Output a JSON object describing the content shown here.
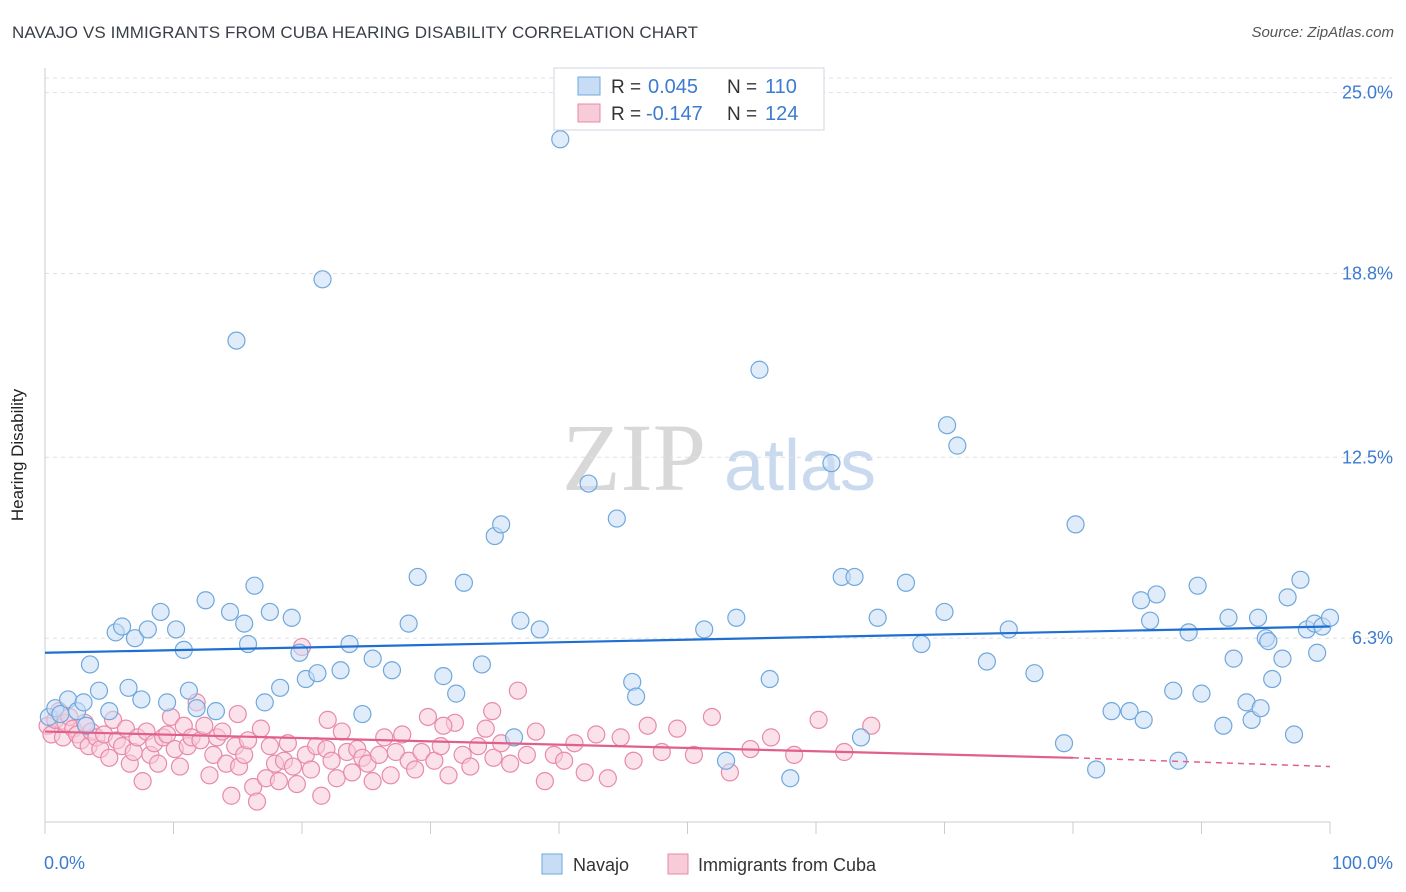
{
  "header": {
    "title": "NAVAJO VS IMMIGRANTS FROM CUBA HEARING DISABILITY CORRELATION CHART",
    "source": "Source: ZipAtlas.com"
  },
  "watermark": {
    "zip": "ZIP",
    "atlas": "atlas"
  },
  "colors": {
    "navajo": "#6fa8dc",
    "navajo_fill": "#c9dcf5",
    "navajo_line": "#1f6fd1",
    "cuba": "#e88aa8",
    "cuba_fill": "#f8cbd9",
    "cuba_line": "#e0608a",
    "tick_text": "#3c7bd0"
  },
  "chart_data": {
    "type": "scatter",
    "title": "NAVAJO VS IMMIGRANTS FROM CUBA HEARING DISABILITY CORRELATION CHART",
    "xlabel": "",
    "ylabel": "Hearing Disability",
    "xlim": [
      0,
      100
    ],
    "ylim": [
      0,
      25.5
    ],
    "x_tick_labels": [
      "0.0%",
      "100.0%"
    ],
    "y_ticks": [
      6.3,
      12.5,
      18.8,
      25.0
    ],
    "y_tick_labels": [
      "6.3%",
      "12.5%",
      "18.8%",
      "25.0%"
    ],
    "grid": true,
    "legend_position": "top-center",
    "legend": [
      {
        "r_label": "R = ",
        "r_value": "0.045",
        "n_label": "N = ",
        "n_value": "110"
      },
      {
        "r_label": "R = ",
        "r_value": "-0.147",
        "n_label": "N = ",
        "n_value": "124"
      }
    ],
    "series": [
      {
        "name": "Navajo",
        "trend": {
          "x": [
            0,
            100
          ],
          "y": [
            5.8,
            6.7
          ]
        },
        "points": [
          [
            0.3,
            3.6
          ],
          [
            0.8,
            3.9
          ],
          [
            1.2,
            3.7
          ],
          [
            1.8,
            4.2
          ],
          [
            2.5,
            3.8
          ],
          [
            3.0,
            4.1
          ],
          [
            3.2,
            3.3
          ],
          [
            3.5,
            5.4
          ],
          [
            4.2,
            4.5
          ],
          [
            5.0,
            3.8
          ],
          [
            5.5,
            6.5
          ],
          [
            6.0,
            6.7
          ],
          [
            6.5,
            4.6
          ],
          [
            7.0,
            6.3
          ],
          [
            7.5,
            4.2
          ],
          [
            8.0,
            6.6
          ],
          [
            9.0,
            7.2
          ],
          [
            9.5,
            4.1
          ],
          [
            10.2,
            6.6
          ],
          [
            10.8,
            5.9
          ],
          [
            11.2,
            4.5
          ],
          [
            11.8,
            3.9
          ],
          [
            12.5,
            7.6
          ],
          [
            13.3,
            3.8
          ],
          [
            14.4,
            7.2
          ],
          [
            14.9,
            16.5
          ],
          [
            15.5,
            6.8
          ],
          [
            15.8,
            6.1
          ],
          [
            16.3,
            8.1
          ],
          [
            17.1,
            4.1
          ],
          [
            17.5,
            7.2
          ],
          [
            18.3,
            4.6
          ],
          [
            19.2,
            7.0
          ],
          [
            19.8,
            5.8
          ],
          [
            20.3,
            4.9
          ],
          [
            21.2,
            5.1
          ],
          [
            21.6,
            18.6
          ],
          [
            23.0,
            5.2
          ],
          [
            23.7,
            6.1
          ],
          [
            24.7,
            3.7
          ],
          [
            25.5,
            5.6
          ],
          [
            27.0,
            5.2
          ],
          [
            28.3,
            6.8
          ],
          [
            29.0,
            8.4
          ],
          [
            31.0,
            5.0
          ],
          [
            32.0,
            4.4
          ],
          [
            32.6,
            8.2
          ],
          [
            34.0,
            5.4
          ],
          [
            35.0,
            9.8
          ],
          [
            35.5,
            10.2
          ],
          [
            36.5,
            2.9
          ],
          [
            37.0,
            6.9
          ],
          [
            38.5,
            6.6
          ],
          [
            40.1,
            23.4
          ],
          [
            42.3,
            11.6
          ],
          [
            44.5,
            10.4
          ],
          [
            45.7,
            4.8
          ],
          [
            46.0,
            4.3
          ],
          [
            51.3,
            6.6
          ],
          [
            53.8,
            7.0
          ],
          [
            55.6,
            15.5
          ],
          [
            56.4,
            4.9
          ],
          [
            58.0,
            1.5
          ],
          [
            61.2,
            12.3
          ],
          [
            62.0,
            8.4
          ],
          [
            63.0,
            8.4
          ],
          [
            64.8,
            7.0
          ],
          [
            67.0,
            8.2
          ],
          [
            68.2,
            6.1
          ],
          [
            70.0,
            7.2
          ],
          [
            71.0,
            12.9
          ],
          [
            73.3,
            5.5
          ],
          [
            75.0,
            6.6
          ],
          [
            77.0,
            5.1
          ],
          [
            79.3,
            2.7
          ],
          [
            80.2,
            10.2
          ],
          [
            81.8,
            1.8
          ],
          [
            83.0,
            3.8
          ],
          [
            84.4,
            3.8
          ],
          [
            85.5,
            3.5
          ],
          [
            86.0,
            6.9
          ],
          [
            87.8,
            4.5
          ],
          [
            88.2,
            2.1
          ],
          [
            89.0,
            6.5
          ],
          [
            90.0,
            4.4
          ],
          [
            91.7,
            3.3
          ],
          [
            92.1,
            7.0
          ],
          [
            93.5,
            4.1
          ],
          [
            93.9,
            3.5
          ],
          [
            94.4,
            7.0
          ],
          [
            95.0,
            6.3
          ],
          [
            95.5,
            4.9
          ],
          [
            96.3,
            5.6
          ],
          [
            96.7,
            7.7
          ],
          [
            97.2,
            3.0
          ],
          [
            98.2,
            6.6
          ],
          [
            98.8,
            6.8
          ],
          [
            99.4,
            6.7
          ],
          [
            100,
            7.0
          ],
          [
            70.2,
            13.6
          ],
          [
            85.3,
            7.6
          ],
          [
            86.5,
            7.8
          ],
          [
            89.7,
            8.1
          ],
          [
            92.5,
            5.6
          ],
          [
            94.6,
            3.9
          ],
          [
            95.2,
            6.2
          ],
          [
            97.7,
            8.3
          ],
          [
            99.0,
            5.8
          ],
          [
            63.5,
            2.9
          ],
          [
            53.0,
            2.1
          ]
        ]
      },
      {
        "name": "Immigrants from Cuba",
        "trend": {
          "x": [
            0,
            80
          ],
          "y": [
            3.1,
            2.2
          ]
        },
        "trend_dashed": {
          "x": [
            80,
            100
          ],
          "y": [
            2.2,
            1.9
          ]
        },
        "points": [
          [
            0.2,
            3.3
          ],
          [
            0.5,
            3.0
          ],
          [
            0.8,
            3.5
          ],
          [
            1.1,
            3.8
          ],
          [
            1.4,
            2.9
          ],
          [
            1.6,
            3.4
          ],
          [
            1.9,
            3.6
          ],
          [
            2.2,
            3.2
          ],
          [
            2.5,
            3.0
          ],
          [
            2.8,
            2.8
          ],
          [
            3.1,
            3.4
          ],
          [
            3.4,
            2.6
          ],
          [
            3.6,
            3.1
          ],
          [
            4.0,
            2.9
          ],
          [
            4.3,
            2.5
          ],
          [
            4.6,
            3.0
          ],
          [
            5.0,
            2.2
          ],
          [
            5.3,
            3.5
          ],
          [
            5.6,
            2.8
          ],
          [
            6.0,
            2.6
          ],
          [
            6.3,
            3.2
          ],
          [
            6.6,
            2.0
          ],
          [
            6.9,
            2.4
          ],
          [
            7.2,
            2.9
          ],
          [
            7.6,
            1.4
          ],
          [
            7.9,
            3.1
          ],
          [
            8.2,
            2.3
          ],
          [
            8.5,
            2.7
          ],
          [
            8.8,
            2.0
          ],
          [
            9.2,
            2.9
          ],
          [
            9.5,
            3.0
          ],
          [
            9.8,
            3.6
          ],
          [
            10.1,
            2.5
          ],
          [
            10.5,
            1.9
          ],
          [
            10.8,
            3.3
          ],
          [
            11.1,
            2.6
          ],
          [
            11.4,
            2.9
          ],
          [
            11.8,
            4.1
          ],
          [
            12.1,
            2.8
          ],
          [
            12.4,
            3.3
          ],
          [
            12.8,
            1.6
          ],
          [
            13.1,
            2.3
          ],
          [
            13.4,
            2.9
          ],
          [
            13.8,
            3.1
          ],
          [
            14.1,
            2.0
          ],
          [
            14.5,
            0.9
          ],
          [
            14.8,
            2.6
          ],
          [
            15.1,
            1.9
          ],
          [
            15.5,
            2.3
          ],
          [
            15.8,
            2.8
          ],
          [
            16.2,
            1.2
          ],
          [
            16.5,
            0.7
          ],
          [
            16.8,
            3.2
          ],
          [
            17.2,
            1.5
          ],
          [
            17.5,
            2.6
          ],
          [
            17.9,
            2.0
          ],
          [
            18.2,
            1.4
          ],
          [
            18.6,
            2.1
          ],
          [
            18.9,
            2.7
          ],
          [
            19.3,
            1.9
          ],
          [
            19.6,
            1.3
          ],
          [
            20.0,
            6.0
          ],
          [
            20.3,
            2.3
          ],
          [
            20.7,
            1.8
          ],
          [
            21.1,
            2.6
          ],
          [
            21.5,
            0.9
          ],
          [
            21.9,
            2.5
          ],
          [
            22.3,
            2.1
          ],
          [
            22.7,
            1.5
          ],
          [
            23.1,
            3.1
          ],
          [
            23.5,
            2.4
          ],
          [
            23.9,
            1.7
          ],
          [
            24.3,
            2.5
          ],
          [
            24.7,
            2.2
          ],
          [
            25.1,
            2.0
          ],
          [
            25.5,
            1.4
          ],
          [
            26.0,
            2.3
          ],
          [
            26.4,
            2.9
          ],
          [
            26.9,
            1.6
          ],
          [
            27.3,
            2.4
          ],
          [
            27.8,
            3.0
          ],
          [
            28.3,
            2.1
          ],
          [
            28.8,
            1.8
          ],
          [
            29.3,
            2.4
          ],
          [
            29.8,
            3.6
          ],
          [
            30.3,
            2.1
          ],
          [
            30.8,
            2.6
          ],
          [
            31.4,
            1.6
          ],
          [
            31.9,
            3.4
          ],
          [
            32.5,
            2.3
          ],
          [
            33.1,
            1.9
          ],
          [
            33.7,
            2.6
          ],
          [
            34.3,
            3.2
          ],
          [
            34.9,
            2.2
          ],
          [
            35.5,
            2.7
          ],
          [
            36.2,
            2.0
          ],
          [
            36.8,
            4.5
          ],
          [
            37.5,
            2.3
          ],
          [
            38.2,
            3.1
          ],
          [
            38.9,
            1.4
          ],
          [
            39.6,
            2.3
          ],
          [
            40.4,
            2.1
          ],
          [
            41.2,
            2.7
          ],
          [
            42.0,
            1.7
          ],
          [
            42.9,
            3.0
          ],
          [
            43.8,
            1.5
          ],
          [
            44.8,
            2.9
          ],
          [
            45.8,
            2.1
          ],
          [
            46.9,
            3.3
          ],
          [
            48.0,
            2.4
          ],
          [
            49.2,
            3.2
          ],
          [
            50.5,
            2.3
          ],
          [
            51.9,
            3.6
          ],
          [
            53.3,
            1.7
          ],
          [
            54.9,
            2.5
          ],
          [
            56.5,
            2.9
          ],
          [
            58.3,
            2.3
          ],
          [
            60.2,
            3.5
          ],
          [
            62.2,
            2.4
          ],
          [
            64.3,
            3.3
          ],
          [
            22.0,
            3.5
          ],
          [
            15.0,
            3.7
          ],
          [
            31.0,
            3.3
          ],
          [
            34.8,
            3.8
          ]
        ]
      }
    ]
  },
  "legend_bottom": [
    "Navajo",
    "Immigrants from Cuba"
  ]
}
